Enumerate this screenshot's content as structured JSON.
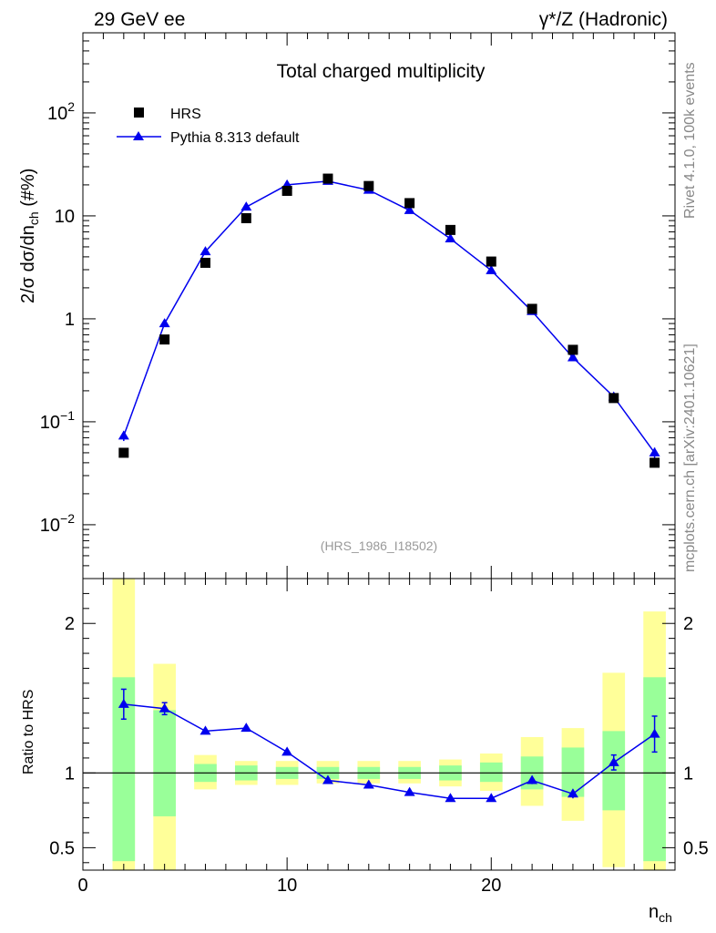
{
  "header": {
    "left": "29 GeV ee",
    "right": "γ*/Z (Hadronic)"
  },
  "side_labels": {
    "rivet": "Rivet 4.1.0,  100k events",
    "mcplots": "mcplots.cern.ch [arXiv:2401.10621]"
  },
  "colors": {
    "mc_line": "#0000ee",
    "data_marker": "#000000",
    "band_outer": "#ffff99",
    "band_inner": "#99ff99"
  },
  "chart_data": [
    {
      "type": "scatter",
      "panel": "main",
      "title": "Total charged multiplicity",
      "analysis_tag": "(HRS_1986_I18502)",
      "ylabel": "2/σ  dσ/dn_ch (#%)",
      "xlabel": "",
      "yscale": "log",
      "xlim": [
        0,
        29
      ],
      "ylim": [
        0.003,
        600
      ],
      "y_ticks": [
        {
          "value": 0.01,
          "label": "10",
          "exp": "−2"
        },
        {
          "value": 0.1,
          "label": "10",
          "exp": "−1"
        },
        {
          "value": 1,
          "label": "1",
          "exp": ""
        },
        {
          "value": 10,
          "label": "10",
          "exp": ""
        },
        {
          "value": 100,
          "label": "10",
          "exp": "2"
        }
      ],
      "legend_position": "top-left",
      "series": [
        {
          "name": "HRS",
          "style": "black-squares",
          "x": [
            2,
            4,
            6,
            8,
            10,
            12,
            14,
            16,
            18,
            20,
            22,
            24,
            26,
            28
          ],
          "y": [
            0.05,
            0.63,
            3.5,
            9.5,
            17.5,
            23,
            19.5,
            13.3,
            7.3,
            3.6,
            1.25,
            0.5,
            0.17,
            0.04
          ]
        },
        {
          "name": "Pythia 8.313 default",
          "style": "blue-line-triangles",
          "x": [
            2,
            4,
            6,
            8,
            10,
            12,
            14,
            16,
            18,
            20,
            22,
            24,
            26,
            28
          ],
          "y": [
            0.073,
            0.9,
            4.5,
            12.2,
            20,
            21.7,
            17.8,
            11.3,
            6.0,
            2.95,
            1.18,
            0.42,
            0.175,
            0.05
          ],
          "yerr": [
            0.008,
            0.04,
            0.1,
            0.2,
            0.3,
            0.3,
            0.3,
            0.2,
            0.1,
            0.06,
            0.03,
            0.015,
            0.01,
            0.006
          ]
        }
      ]
    },
    {
      "type": "line",
      "panel": "ratio",
      "ylabel": "Ratio to HRS",
      "xlabel": "n_ch",
      "xlim": [
        0,
        29
      ],
      "ylim": [
        0.35,
        2.3
      ],
      "x_ticks": [
        0,
        10,
        20
      ],
      "y_ticks": [
        {
          "value": 0.5,
          "label": "0.5"
        },
        {
          "value": 1,
          "label": "1"
        },
        {
          "value": 2,
          "label": "2"
        }
      ],
      "reference_line": 1,
      "bands": [
        {
          "x": 2,
          "inner": [
            0.41,
            1.64
          ],
          "outer": [
            0.35,
            2.3
          ]
        },
        {
          "x": 4,
          "inner": [
            0.71,
            1.42
          ],
          "outer": [
            0.35,
            1.73
          ]
        },
        {
          "x": 6,
          "inner": [
            0.94,
            1.06
          ],
          "outer": [
            0.89,
            1.12
          ]
        },
        {
          "x": 8,
          "inner": [
            0.95,
            1.05
          ],
          "outer": [
            0.92,
            1.08
          ]
        },
        {
          "x": 10,
          "inner": [
            0.96,
            1.04
          ],
          "outer": [
            0.92,
            1.08
          ]
        },
        {
          "x": 12,
          "inner": [
            0.96,
            1.04
          ],
          "outer": [
            0.93,
            1.08
          ]
        },
        {
          "x": 14,
          "inner": [
            0.96,
            1.04
          ],
          "outer": [
            0.93,
            1.08
          ]
        },
        {
          "x": 16,
          "inner": [
            0.96,
            1.04
          ],
          "outer": [
            0.93,
            1.08
          ]
        },
        {
          "x": 18,
          "inner": [
            0.95,
            1.05
          ],
          "outer": [
            0.91,
            1.09
          ]
        },
        {
          "x": 20,
          "inner": [
            0.94,
            1.07
          ],
          "outer": [
            0.88,
            1.13
          ]
        },
        {
          "x": 22,
          "inner": [
            0.89,
            1.11
          ],
          "outer": [
            0.78,
            1.24
          ]
        },
        {
          "x": 24,
          "inner": [
            0.84,
            1.17
          ],
          "outer": [
            0.68,
            1.3
          ]
        },
        {
          "x": 26,
          "inner": [
            0.75,
            1.28
          ],
          "outer": [
            0.37,
            1.67
          ]
        },
        {
          "x": 28,
          "inner": [
            0.41,
            1.64
          ],
          "outer": [
            0.35,
            2.08
          ]
        }
      ],
      "series": [
        {
          "name": "Pythia 8.313 default / HRS",
          "x": [
            2,
            4,
            6,
            8,
            10,
            12,
            14,
            16,
            18,
            20,
            22,
            24,
            26,
            28
          ],
          "y": [
            1.46,
            1.43,
            1.28,
            1.3,
            1.14,
            0.95,
            0.92,
            0.87,
            0.83,
            0.83,
            0.95,
            0.86,
            1.07,
            1.26
          ],
          "yerr": [
            0.1,
            0.04,
            0.02,
            0.02,
            0.02,
            0.015,
            0.015,
            0.015,
            0.015,
            0.015,
            0.025,
            0.03,
            0.05,
            0.12
          ]
        }
      ]
    }
  ]
}
